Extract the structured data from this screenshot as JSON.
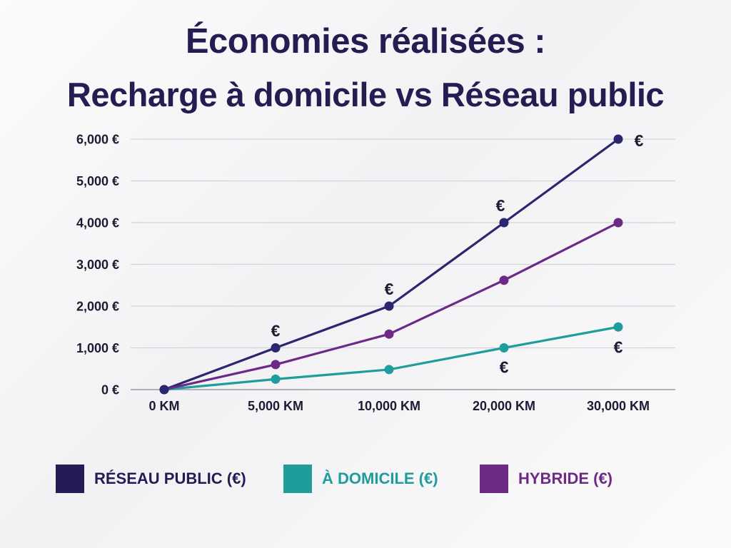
{
  "title_line1": "Économies réalisées :",
  "title_line2": "Recharge à domicile vs Réseau public",
  "chart_data": {
    "type": "line",
    "title": "Économies réalisées : Recharge à domicile vs Réseau public",
    "categories": [
      "0 KM",
      "5,000 KM",
      "10,000 KM",
      "20,000 KM",
      "30,000 KM"
    ],
    "y_tick_labels": [
      "0 €",
      "1,000 €",
      "2,000 €",
      "3,000 €",
      "4,000 €",
      "5,000 €",
      "6,000 €"
    ],
    "ylim": [
      0,
      6000
    ],
    "grid": true,
    "legend_position": "bottom",
    "series": [
      {
        "name": "RÉSEAU PUBLIC (€)",
        "color": "#2a2670",
        "values": [
          0,
          1000,
          2000,
          4000,
          6000
        ]
      },
      {
        "name": "À DOMICILE (€)",
        "color": "#1f9c9c",
        "values": [
          0,
          250,
          480,
          1000,
          1500
        ]
      },
      {
        "name": "HYBRIDE (€)",
        "color": "#6c2a86",
        "values": [
          0,
          600,
          1330,
          2620,
          4000
        ]
      }
    ],
    "annotations": [
      {
        "text": "€",
        "category": "5,000 KM",
        "value": 1000,
        "series": "RÉSEAU PUBLIC (€)"
      },
      {
        "text": "€",
        "category": "10,000 KM",
        "value": 2000,
        "series": "RÉSEAU PUBLIC (€)"
      },
      {
        "text": "€",
        "category": "20,000 KM",
        "value": 4000,
        "series": "RÉSEAU PUBLIC (€)"
      },
      {
        "text": "€",
        "category": "30,000 KM",
        "value": 6000,
        "series": "RÉSEAU PUBLIC (€)"
      },
      {
        "text": "€",
        "category": "20,000 KM",
        "value": 1000,
        "series": "À DOMICILE (€)"
      },
      {
        "text": "€",
        "category": "30,000 KM",
        "value": 1500,
        "series": "À DOMICILE (€)"
      }
    ]
  },
  "legend": [
    {
      "label": "RÉSEAU PUBLIC (€)",
      "swatch_color": "#251c55",
      "text_color": "#251c55"
    },
    {
      "label": "À DOMICILE (€)",
      "swatch_color": "#1f9c9c",
      "text_color": "#1f9c9c"
    },
    {
      "label": "HYBRIDE (€)",
      "swatch_color": "#6c2a86",
      "text_color": "#6c2a86"
    }
  ]
}
